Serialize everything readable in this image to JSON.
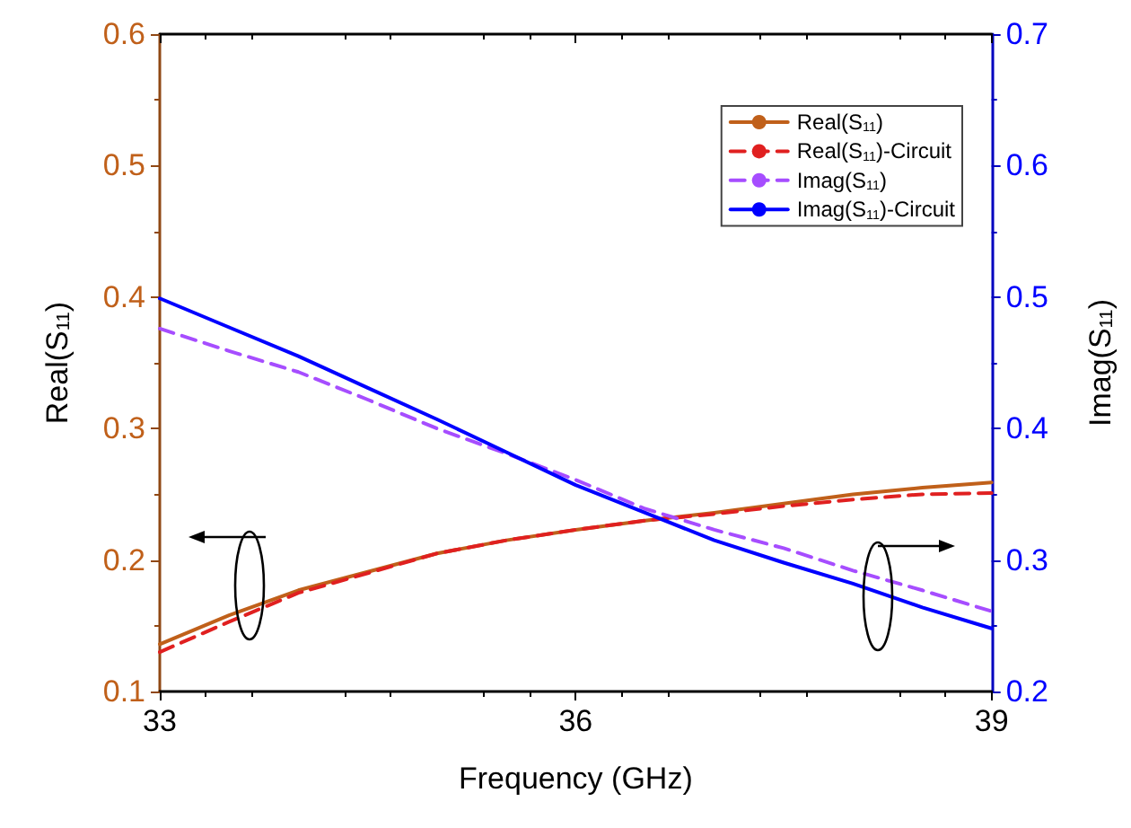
{
  "chart_data": {
    "type": "line",
    "xlabel": "Frequency (GHz)",
    "ylabel": "Real(S$_{11}$)",
    "y2label": "Imag(S$_{11}$)",
    "x": [
      33,
      33.5,
      34,
      34.5,
      35,
      35.5,
      36,
      36.5,
      37,
      37.5,
      38,
      38.5,
      39
    ],
    "xlim": [
      33,
      39
    ],
    "xticks": [
      33,
      36,
      39
    ],
    "ylim": [
      0.1,
      0.6
    ],
    "yticks": [
      0.1,
      0.2,
      0.3,
      0.4,
      0.5,
      0.6
    ],
    "y2lim": [
      0.2,
      0.7
    ],
    "y2ticks": [
      0.2,
      0.3,
      0.4,
      0.5,
      0.6,
      0.7
    ],
    "grid": false,
    "legend": "top right",
    "marker": "none",
    "series": [
      {
        "name": "Real(S$_{11}$)",
        "color": "#c0601a",
        "line_style": "solid",
        "values": [
          0.136,
          0.158,
          0.177,
          0.191,
          0.205,
          0.215,
          0.223,
          0.23,
          0.236,
          0.243,
          0.25,
          0.255,
          0.259
        ]
      },
      {
        "name": "Real(S$_{11}$)-Circuit",
        "color": "#e02020",
        "line_style": "dashed",
        "values": [
          0.13,
          0.153,
          0.175,
          0.19,
          0.205,
          0.215,
          0.223,
          0.23,
          0.235,
          0.241,
          0.246,
          0.25,
          0.251
        ]
      },
      {
        "name": "Imag(S$_{11}$)",
        "color": "#a64dff",
        "line_style": "dashed",
        "axis": "y2",
        "values": [
          0.476,
          0.459,
          0.443,
          0.422,
          0.4,
          0.381,
          0.361,
          0.339,
          0.323,
          0.309,
          0.292,
          0.277,
          0.261
        ]
      },
      {
        "name": "Imag(S$_{11}$)-Circuit",
        "color": "#0000ff",
        "line_style": "solid",
        "axis": "y2",
        "values": [
          0.499,
          0.477,
          0.455,
          0.431,
          0.407,
          0.382,
          0.357,
          0.336,
          0.315,
          0.298,
          0.282,
          0.264,
          0.248
        ]
      }
    ]
  }
}
